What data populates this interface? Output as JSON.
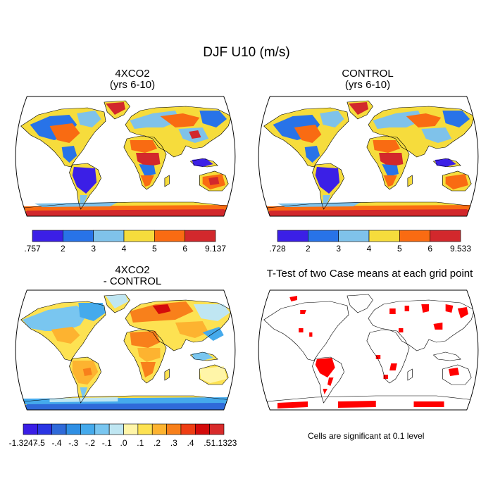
{
  "figure_title": "DJF U10 (m/s)",
  "panels": [
    {
      "id": "p1",
      "title_line1": "4XCO2",
      "title_line2": "(yrs 6-10)"
    },
    {
      "id": "p2",
      "title_line1": "CONTROL",
      "title_line2": "(yrs 6-10)"
    },
    {
      "id": "p3",
      "title_line1": "4XCO2",
      "title_line2": "- CONTROL"
    },
    {
      "id": "p4",
      "title_line1": "T-Test of two Case means at each grid point",
      "title_line2": ""
    }
  ],
  "colorbars": [
    {
      "panel": "p1",
      "labels": [
        ".757",
        "2",
        "3",
        "4",
        "5",
        "6",
        "9.137"
      ],
      "colors": [
        "#3b1fe6",
        "#2873e8",
        "#7fc2ea",
        "#f6dc3c",
        "#f96b12",
        "#d2282c"
      ]
    },
    {
      "panel": "p2",
      "labels": [
        ".728",
        "2",
        "3",
        "4",
        "5",
        "6",
        "9.533"
      ],
      "colors": [
        "#3b1fe6",
        "#2873e8",
        "#7fc2ea",
        "#f6dc3c",
        "#f96b12",
        "#d2282c"
      ]
    },
    {
      "panel": "p3",
      "labels": [
        "-1.3247",
        "-.5",
        "-.4",
        "-.3",
        "-.2",
        "-.1",
        ".0",
        ".1",
        ".2",
        ".3",
        ".4",
        ".5",
        "1.1323"
      ],
      "colors": [
        "#3a1ee6",
        "#2a35e3",
        "#2f6ad9",
        "#2f8fe4",
        "#45aaec",
        "#79c6f0",
        "#bfe6f2",
        "#fff5a8",
        "#fde252",
        "#fdb330",
        "#f8801b",
        "#ef3e14",
        "#d40b0b",
        "#d82b2b"
      ]
    }
  ],
  "significance_note": "Cells are significant at 0.1 level",
  "colors": {
    "sig_red": "#ff0000",
    "land_base_1": "#f0b030",
    "ocean": "#ffffff"
  }
}
